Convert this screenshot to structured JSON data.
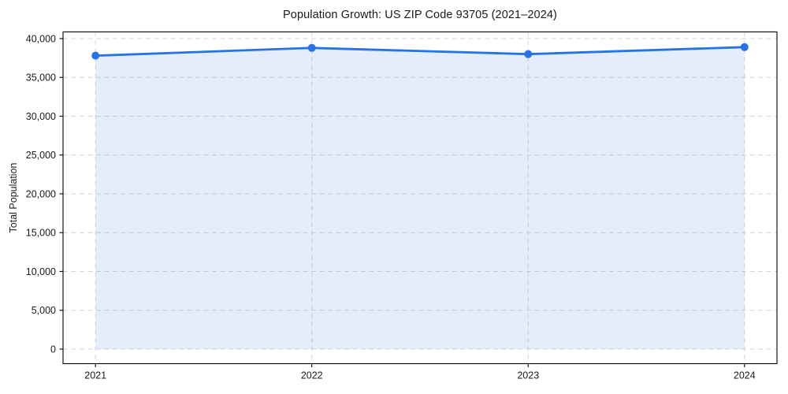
{
  "figure": {
    "title": "Population Growth: US ZIP Code 93705 (2021–2024)",
    "background_color": "#ffffff"
  },
  "chart_data": {
    "type": "area",
    "title": "Population Growth: US ZIP Code 93705 (2021–2024)",
    "xlabel": "",
    "ylabel": "Total Population",
    "x": [
      2021,
      2022,
      2023,
      2024
    ],
    "x_tick_labels": [
      "2021",
      "2022",
      "2023",
      "2024"
    ],
    "series": [
      {
        "name": "Total Population",
        "values": [
          37800,
          38800,
          38000,
          38900
        ]
      }
    ],
    "y_ticks": [
      0,
      5000,
      10000,
      15000,
      20000,
      25000,
      30000,
      35000,
      40000
    ],
    "y_tick_labels": [
      "0",
      "5,000",
      "10,000",
      "15,000",
      "20,000",
      "25,000",
      "30,000",
      "35,000",
      "40,000"
    ],
    "xlim": [
      2020.85,
      2024.15
    ],
    "ylim": [
      -1880,
      40860
    ],
    "grid": "dashed-both-axes",
    "legend_position": "none",
    "marker": "circle",
    "baseline_value": 0,
    "colors": {
      "line": "#2673e8",
      "marker": "#2673e8",
      "fill": "#2673e8",
      "fill_opacity": 0.13,
      "grid": "#d6d6d6",
      "spine": "#000000",
      "text": "#1a1a1a"
    }
  }
}
